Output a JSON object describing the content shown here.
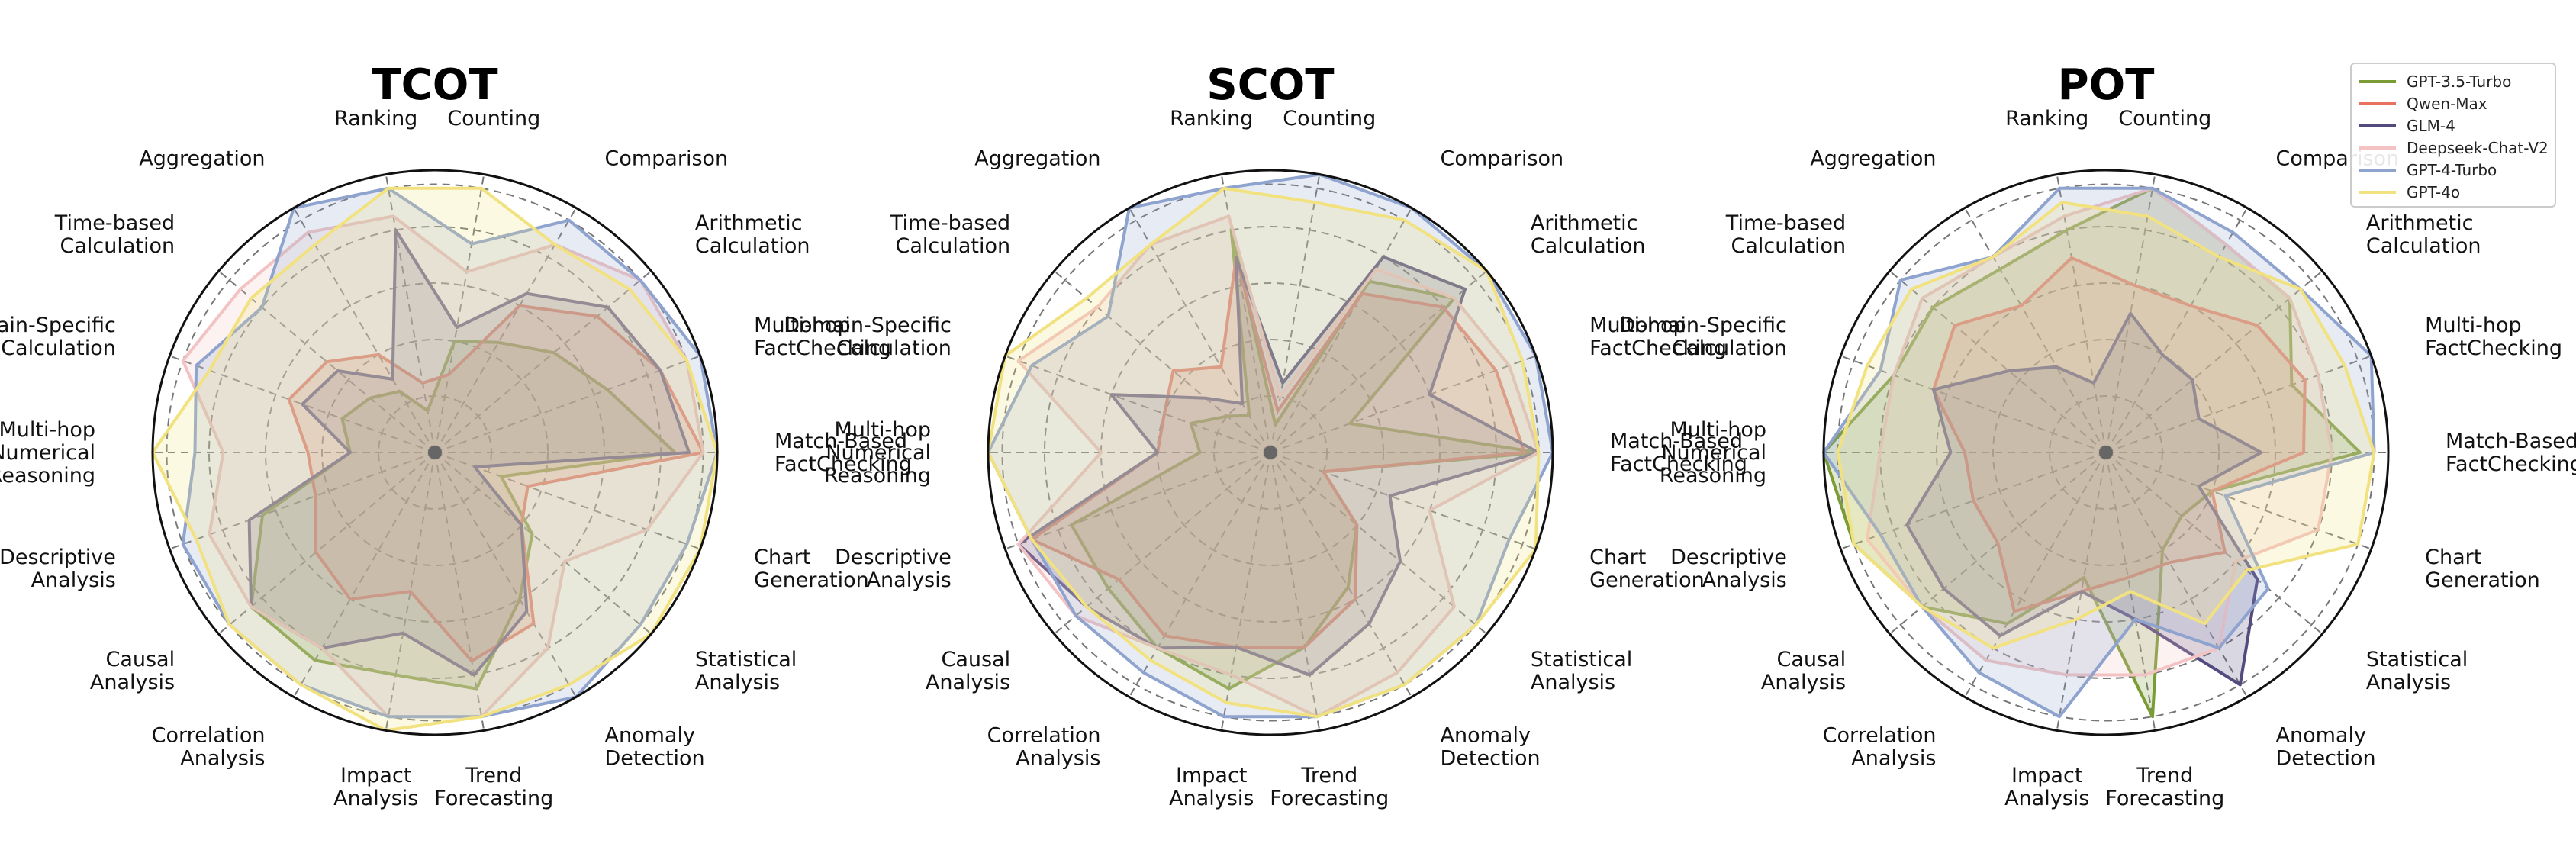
{
  "chart_data": {
    "type": "radar",
    "axes": [
      "Counting",
      "Comparison",
      "Arithmetic Calculation",
      "Multi-hop FactChecking",
      "Match-Based FactChecking",
      "Chart Generation",
      "Statistical Analysis",
      "Anomaly Detection",
      "Trend Forecasting",
      "Impact Analysis",
      "Correlation Analysis",
      "Causal Analysis",
      "Descriptive Analysis",
      "Multi-hop Numerical Reasoning",
      "Domain-Specific Calculation",
      "Time-based Calculation",
      "Aggregation",
      "Ranking"
    ],
    "rlim": [
      0,
      100
    ],
    "grid": true,
    "legend_position": "top-right",
    "series_styles": [
      {
        "name": "GPT-3.5-Turbo",
        "color": "#7b9c35"
      },
      {
        "name": "Qwen-Max",
        "color": "#e8715f"
      },
      {
        "name": "GLM-4",
        "color": "#544a7d"
      },
      {
        "name": "Deepseek-Chat-V2",
        "color": "#f3c3c3"
      },
      {
        "name": "GPT-4-Turbo",
        "color": "#8fa3cf"
      },
      {
        "name": "GPT-4o",
        "color": "#f2e27f"
      }
    ],
    "charts": [
      {
        "title": "TCOT",
        "series": [
          {
            "name": "GPT-3.5-Turbo",
            "values": [
              40,
              45,
              55,
              65,
              85,
              25,
              45,
              60,
              85,
              80,
              85,
              85,
              65,
              30,
              35,
              30,
              25,
              15
            ]
          },
          {
            "name": "Qwen-Max",
            "values": [
              28,
              60,
              75,
              85,
              95,
              35,
              40,
              70,
              75,
              50,
              60,
              55,
              45,
              45,
              55,
              50,
              40,
              25
            ]
          },
          {
            "name": "GLM-4",
            "values": [
              45,
              65,
              80,
              85,
              90,
              15,
              40,
              65,
              80,
              65,
              80,
              85,
              70,
              30,
              50,
              45,
              30,
              80
            ]
          },
          {
            "name": "Deepseek-Chat-V2",
            "values": [
              65,
              85,
              95,
              95,
              95,
              80,
              60,
              80,
              95,
              95,
              80,
              85,
              85,
              75,
              95,
              90,
              90,
              85
            ]
          },
          {
            "name": "GPT-4-Turbo",
            "values": [
              75,
              95,
              95,
              100,
              100,
              95,
              95,
              100,
              95,
              95,
              95,
              95,
              95,
              85,
              90,
              80,
              100,
              95
            ]
          },
          {
            "name": "GPT-4o",
            "values": [
              95,
              85,
              90,
              95,
              100,
              100,
              100,
              95,
              95,
              100,
              95,
              95,
              90,
              100,
              85,
              85,
              85,
              95
            ]
          }
        ]
      },
      {
        "title": "SCOT",
        "series": [
          {
            "name": "GPT-3.5-Turbo",
            "values": [
              10,
              70,
              85,
              30,
              95,
              20,
              40,
              55,
              70,
              85,
              80,
              75,
              75,
              25,
              30,
              20,
              15,
              80
            ]
          },
          {
            "name": "Qwen-Max",
            "values": [
              15,
              65,
              80,
              85,
              90,
              20,
              40,
              60,
              70,
              70,
              75,
              70,
              90,
              40,
              40,
              45,
              35,
              70
            ]
          },
          {
            "name": "GLM-4",
            "values": [
              25,
              80,
              90,
              60,
              95,
              45,
              60,
              70,
              80,
              70,
              80,
              85,
              95,
              40,
              60,
              30,
              20,
              70
            ]
          },
          {
            "name": "Deepseek-Chat-V2",
            "values": [
              20,
              75,
              85,
              90,
              95,
              60,
              85,
              90,
              95,
              80,
              80,
              90,
              95,
              60,
              95,
              80,
              85,
              85
            ]
          },
          {
            "name": "GPT-4-Turbo",
            "values": [
              100,
              100,
              100,
              100,
              100,
              90,
              95,
              95,
              95,
              95,
              90,
              90,
              90,
              100,
              90,
              75,
              100,
              95
            ]
          },
          {
            "name": "GPT-4o",
            "values": [
              90,
              95,
              100,
              95,
              95,
              100,
              95,
              95,
              95,
              90,
              85,
              85,
              90,
              100,
              100,
              85,
              85,
              95
            ]
          }
        ]
      },
      {
        "title": "POT",
        "series": [
          {
            "name": "GPT-3.5-Turbo",
            "values": [
              95,
              85,
              85,
              70,
              90,
              40,
              35,
              40,
              95,
              45,
              70,
              85,
              95,
              100,
              80,
              80,
              75,
              80
            ]
          },
          {
            "name": "Qwen-Max",
            "values": [
              60,
              60,
              70,
              75,
              70,
              40,
              55,
              45,
              45,
              50,
              65,
              50,
              50,
              50,
              65,
              70,
              60,
              70
            ]
          },
          {
            "name": "GLM-4",
            "values": [
              50,
              40,
              40,
              35,
              55,
              35,
              70,
              95,
              60,
              50,
              75,
              75,
              75,
              55,
              65,
              45,
              35,
              25
            ]
          },
          {
            "name": "Deepseek-Chat-V2",
            "values": [
              95,
              85,
              85,
              80,
              80,
              80,
              60,
              80,
              80,
              80,
              85,
              85,
              90,
              80,
              80,
              85,
              80,
              85
            ]
          },
          {
            "name": "GPT-4-Turbo",
            "values": [
              95,
              90,
              90,
              100,
              95,
              45,
              75,
              80,
              60,
              95,
              90,
              85,
              85,
              100,
              85,
              95,
              80,
              95
            ]
          },
          {
            "name": "GPT-4o",
            "values": [
              85,
              80,
              90,
              90,
              95,
              95,
              65,
              70,
              50,
              60,
              80,
              85,
              95,
              95,
              90,
              90,
              80,
              90
            ]
          }
        ]
      }
    ]
  }
}
